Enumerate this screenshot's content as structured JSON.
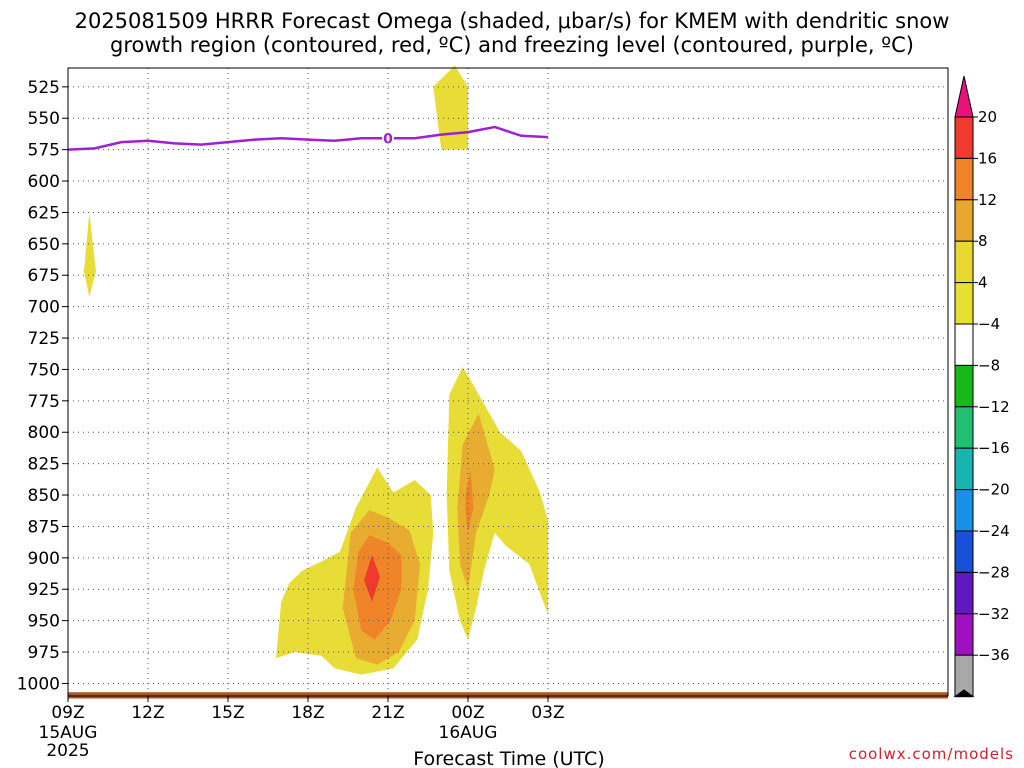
{
  "title_line1": "2025081509 HRRR Forecast Omega (shaded, μbar/s) for KMEM with dendritic snow",
  "title_line2": "growth region (contoured, red, ºC) and freezing level (contoured, purple, ºC)",
  "credit": "coolwx.com/models",
  "chart_data": {
    "type": "heatmap",
    "title": "2025081509 HRRR Forecast Omega (shaded, μbar/s) for KMEM with dendritic snow growth region (contoured, red, ºC) and freezing level (contoured, purple, ºC)",
    "xlabel": "Forecast Time (UTC)",
    "ylabel": "",
    "x_range_hours": [
      9,
      42
    ],
    "y_range_hpa": [
      1010,
      510
    ],
    "grid": true,
    "x_ticks": [
      {
        "hour": 9,
        "label": "09Z",
        "sub1": "15AUG",
        "sub2": "2025"
      },
      {
        "hour": 12,
        "label": "12Z",
        "sub1": "",
        "sub2": ""
      },
      {
        "hour": 15,
        "label": "15Z",
        "sub1": "",
        "sub2": ""
      },
      {
        "hour": 18,
        "label": "18Z",
        "sub1": "",
        "sub2": ""
      },
      {
        "hour": 21,
        "label": "21Z",
        "sub1": "",
        "sub2": ""
      },
      {
        "hour": 24,
        "label": "00Z",
        "sub1": "16AUG",
        "sub2": ""
      },
      {
        "hour": 27,
        "label": "03Z",
        "sub1": "",
        "sub2": ""
      }
    ],
    "y_ticks": [
      525,
      550,
      575,
      600,
      625,
      650,
      675,
      700,
      725,
      750,
      775,
      800,
      825,
      850,
      875,
      900,
      925,
      950,
      975,
      1000
    ],
    "colorbar": {
      "ticks": [
        "20",
        "16",
        "12",
        "8",
        "4",
        "−4",
        "−8",
        "−12",
        "−16",
        "−20",
        "−24",
        "−28",
        "−32",
        "−36"
      ],
      "colors": [
        "#e8127a",
        "#f03a2e",
        "#f0822a",
        "#e8a830",
        "#e8d830",
        "#e8e030",
        "#ffffff",
        "#18b818",
        "#20c070",
        "#18b4b0",
        "#1890e8",
        "#1850d8",
        "#6018c0",
        "#a010c0",
        "#a8a8a8",
        "#000000"
      ]
    },
    "freezing_level": {
      "label": "0",
      "color": "#a020d0",
      "points": [
        [
          9,
          575
        ],
        [
          10,
          574
        ],
        [
          11,
          569
        ],
        [
          12,
          568
        ],
        [
          13,
          570
        ],
        [
          14,
          571
        ],
        [
          15,
          569
        ],
        [
          16,
          567
        ],
        [
          17,
          566
        ],
        [
          18,
          567
        ],
        [
          19,
          568
        ],
        [
          20,
          566
        ],
        [
          21,
          566
        ],
        [
          22,
          566
        ],
        [
          23,
          563
        ],
        [
          24,
          561
        ],
        [
          25,
          557
        ],
        [
          26,
          564
        ],
        [
          27,
          565
        ]
      ]
    },
    "omega_regions": [
      {
        "level": "4-8",
        "color": "#e8dc36",
        "points": [
          [
            9.8,
            625
          ],
          [
            10.05,
            672
          ],
          [
            9.8,
            692
          ],
          [
            9.6,
            672
          ]
        ]
      },
      {
        "level": "4-8",
        "color": "#e8dc36",
        "points": [
          [
            23.5,
            508
          ],
          [
            24,
            525
          ],
          [
            24,
            575
          ],
          [
            23,
            575
          ],
          [
            22.7,
            525
          ]
        ]
      },
      {
        "level": "4-8",
        "color": "#e8dc36",
        "points": [
          [
            16.8,
            980
          ],
          [
            17,
            935
          ],
          [
            17.3,
            920
          ],
          [
            17.8,
            910
          ],
          [
            18.5,
            903
          ],
          [
            19.2,
            895
          ],
          [
            19.8,
            860
          ],
          [
            20.6,
            828
          ],
          [
            21.2,
            848
          ],
          [
            22,
            838
          ],
          [
            22.6,
            850
          ],
          [
            22.7,
            880
          ],
          [
            22.5,
            925
          ],
          [
            22.1,
            965
          ],
          [
            21.2,
            988
          ],
          [
            20,
            993
          ],
          [
            19,
            988
          ],
          [
            18.5,
            978
          ],
          [
            17.5,
            975
          ]
        ]
      },
      {
        "level": "4-8",
        "color": "#e8dc36",
        "points": [
          [
            23.3,
            770
          ],
          [
            23.8,
            748
          ],
          [
            24.4,
            770
          ],
          [
            25.2,
            800
          ],
          [
            26,
            815
          ],
          [
            26.7,
            848
          ],
          [
            27,
            870
          ],
          [
            27,
            945
          ],
          [
            26.3,
            905
          ],
          [
            25.4,
            890
          ],
          [
            25,
            880
          ],
          [
            24.6,
            910
          ],
          [
            24.3,
            940
          ],
          [
            24,
            965
          ],
          [
            23.7,
            950
          ],
          [
            23.3,
            910
          ],
          [
            23.2,
            850
          ]
        ]
      },
      {
        "level": "8-12",
        "color": "#e8ac30",
        "points": [
          [
            19.3,
            940
          ],
          [
            19.6,
            880
          ],
          [
            20.3,
            862
          ],
          [
            21,
            868
          ],
          [
            21.8,
            878
          ],
          [
            22.2,
            905
          ],
          [
            22,
            950
          ],
          [
            21.4,
            975
          ],
          [
            20.6,
            985
          ],
          [
            19.8,
            980
          ]
        ]
      },
      {
        "level": "8-12",
        "color": "#e8ac30",
        "points": [
          [
            23.8,
            810
          ],
          [
            24.4,
            785
          ],
          [
            25,
            830
          ],
          [
            24.8,
            850
          ],
          [
            24.3,
            880
          ],
          [
            24,
            925
          ],
          [
            23.7,
            905
          ],
          [
            23.6,
            860
          ]
        ]
      },
      {
        "level": "12-16",
        "color": "#f08428",
        "points": [
          [
            19.7,
            925
          ],
          [
            19.9,
            895
          ],
          [
            20.3,
            882
          ],
          [
            21,
            888
          ],
          [
            21.5,
            898
          ],
          [
            21.5,
            925
          ],
          [
            21.1,
            950
          ],
          [
            20.5,
            965
          ],
          [
            20,
            958
          ]
        ]
      },
      {
        "level": "12-16",
        "color": "#f08428",
        "points": [
          [
            23.9,
            850
          ],
          [
            24.1,
            830
          ],
          [
            24.2,
            860
          ],
          [
            24,
            880
          ],
          [
            23.9,
            860
          ]
        ]
      },
      {
        "level": "16-20",
        "color": "#f03a2e",
        "points": [
          [
            20.1,
            918
          ],
          [
            20.4,
            898
          ],
          [
            20.7,
            915
          ],
          [
            20.4,
            935
          ]
        ]
      }
    ],
    "surface_band": {
      "color": "#a8582a",
      "from_hpa": 1007,
      "to_hpa": 1012
    }
  }
}
